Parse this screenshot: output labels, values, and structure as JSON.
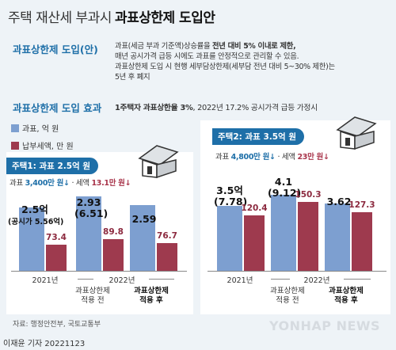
{
  "title": {
    "light": "주택 재산세 부과시",
    "bold": "과표상한제 도입안"
  },
  "section1": {
    "heading": "과표상한제 도입(안)",
    "lines": [
      {
        "pre": "과표(세금 부과 기준액)상승률을 ",
        "bold": "전년 대비 5% 이내로 제한,",
        "post": ""
      },
      {
        "pre": "매년 공시가격 급등 시에도 과표를 안정적으로 관리할 수 있음.",
        "bold": "",
        "post": ""
      },
      {
        "pre": "과표상한제 도입 시 현행 세부담상한제(세부담 전년 대비 5~30% 제한)는",
        "bold": "",
        "post": ""
      },
      {
        "pre": "5년 후 폐지",
        "bold": "",
        "post": ""
      }
    ]
  },
  "section2": {
    "heading": "과표상한제 도입 효과",
    "note_bold": "1주택자 과표상한율 3%",
    "note_rest": ", 2022년 17.2% 공시가격 급등 가정시"
  },
  "legend": [
    {
      "label": "과표, 억 원",
      "color": "#7d9fd0"
    },
    {
      "label": "납부세액, 만 원",
      "color": "#9e3a4e"
    }
  ],
  "house1": {
    "pill": "주택1: 과표 2.5억 원",
    "note_pre": "과표 ",
    "note_b": "3,400만 원↓",
    "note_mid": " · 세액 ",
    "note_r": "13.1만 원↓"
  },
  "house2": {
    "pill": "주택2: 과표 3.5억 원",
    "note_pre": "과표 ",
    "note_b": "4,800만 원↓",
    "note_mid": " · 세액 ",
    "note_r": "23만 원↓"
  },
  "labels": {
    "h1_2021_top": "2.5억",
    "h1_2021_note": "(공시가 5.56억)",
    "h1_before_top": "2.93",
    "h1_before_sub": "(6.51)",
    "h1_after_top": "2.59",
    "h2_2021_top": "3.5억",
    "h2_2021_sub": "(7.78)",
    "h2_before_top": "4.1",
    "h2_before_sub": "(9.12)",
    "h2_after_top": "3.62"
  },
  "axis": {
    "y2021": "2021년",
    "y2022": "2022년",
    "before": [
      "과표상한제",
      "적용 전"
    ],
    "after": [
      "과표상한제",
      "적용 후"
    ]
  },
  "footer": {
    "source": "자료: 행정안전부, 국토교통부",
    "byline": "이재윤 기자  20221123",
    "logo": "YONHAP NEWS"
  },
  "chart_data": [
    {
      "type": "bar",
      "title": "주택1: 과표 2.5억 원",
      "categories": [
        "2021년",
        "2022년 과표상한제 적용 전",
        "2022년 과표상한제 적용 후"
      ],
      "series": [
        {
          "name": "과표, 억 원",
          "values": [
            2.5,
            2.93,
            2.59
          ]
        },
        {
          "name": "납부세액, 만 원",
          "values": [
            73.4,
            89.8,
            76.7
          ]
        }
      ]
    },
    {
      "type": "bar",
      "title": "주택2: 과표 3.5억 원",
      "categories": [
        "2021년",
        "2022년 과표상한제 적용 전",
        "2022년 과표상한제 적용 후"
      ],
      "series": [
        {
          "name": "과표, 억 원",
          "values": [
            3.5,
            4.1,
            3.62
          ]
        },
        {
          "name": "납부세액, 만 원",
          "values": [
            120.4,
            150.3,
            127.3
          ]
        }
      ]
    }
  ]
}
